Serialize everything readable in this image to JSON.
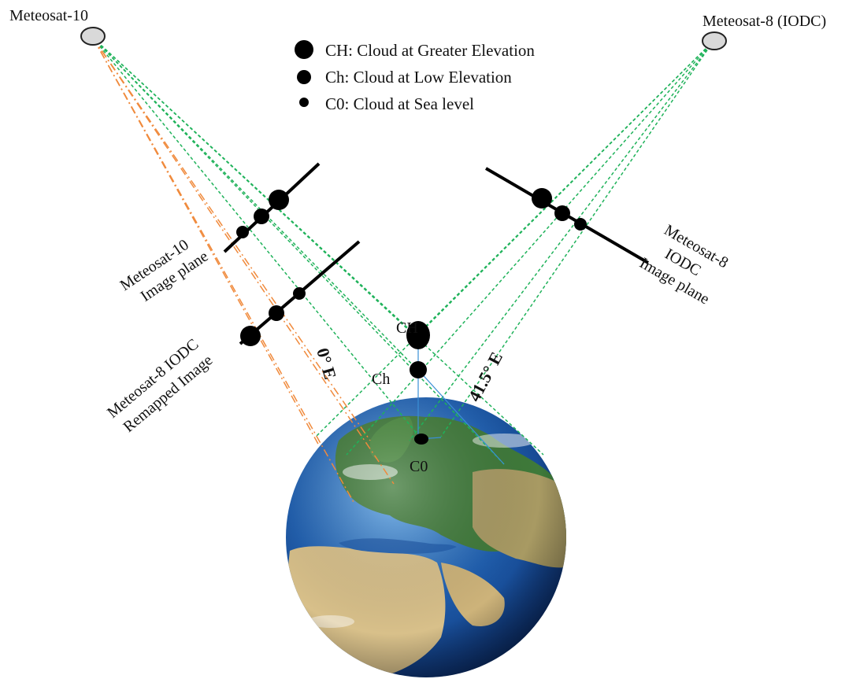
{
  "satellites": {
    "left": {
      "name": "Meteosat-10"
    },
    "right": {
      "name": "Meteosat-8 (IODC)"
    }
  },
  "legend": {
    "items": [
      {
        "text": "CH: Cloud at Greater Elevation"
      },
      {
        "text": "Ch: Cloud at Low Elevation"
      },
      {
        "text": "C0: Cloud at Sea level"
      }
    ]
  },
  "planes": {
    "met10": {
      "line1": "Meteosat-10",
      "line2": "Image plane"
    },
    "remapped": {
      "line1": "Meteosat-8 IODC",
      "line2": "Remapped Image"
    },
    "met8": {
      "line1": "Meteosat-8",
      "line2": "IODC",
      "line3": "Image plane"
    }
  },
  "clouds": {
    "CH": "CH",
    "Ch": "Ch",
    "C0": "C0"
  },
  "longitudes": {
    "zero": "0° E",
    "iodc": "41.5° E"
  },
  "colors": {
    "green_rays": "#1fb25a",
    "orange_rays": "#f08a3c",
    "blue_lines": "#3a8fd6",
    "satellite_fill": "#d9d9d9",
    "ocean": "#1f5fb0"
  }
}
